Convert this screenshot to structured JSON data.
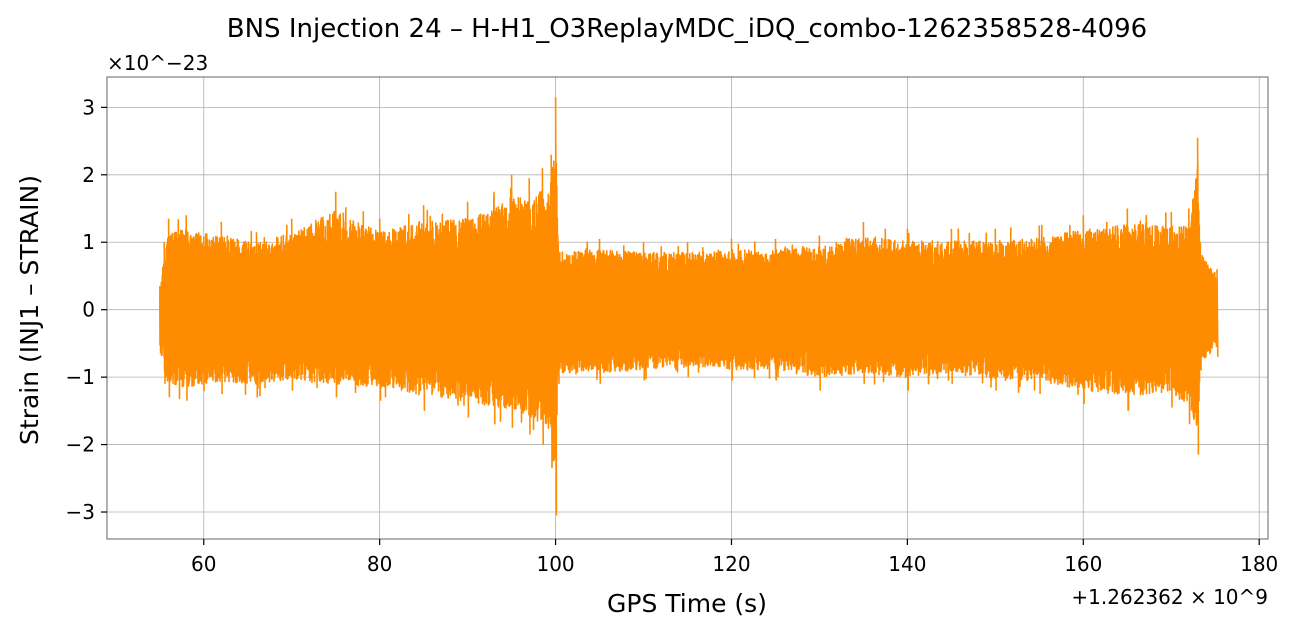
{
  "chart_data": {
    "type": "line",
    "title": "BNS Injection 24 – H-H1_O3ReplayMDC_iDQ_combo-1262358528-4096",
    "xlabel": "GPS Time (s)",
    "ylabel": "Strain (INJ1 – STRAIN)",
    "x_offset_label": "+1.262362 × 10^9",
    "y_scale_label": "×10^−23",
    "xlim": [
      49,
      181
    ],
    "ylim": [
      -3.4,
      3.45
    ],
    "x_ticks": [
      {
        "value": 60,
        "label": "60"
      },
      {
        "value": 80,
        "label": "80"
      },
      {
        "value": 100,
        "label": "100"
      },
      {
        "value": 120,
        "label": "120"
      },
      {
        "value": 140,
        "label": "140"
      },
      {
        "value": 160,
        "label": "160"
      },
      {
        "value": 180,
        "label": "180"
      }
    ],
    "y_ticks": [
      {
        "value": 3,
        "label": "3"
      },
      {
        "value": 2,
        "label": "2"
      },
      {
        "value": 1,
        "label": "1"
      },
      {
        "value": 0,
        "label": "0"
      },
      {
        "value": -1,
        "label": "−1"
      },
      {
        "value": -2,
        "label": "−2"
      },
      {
        "value": -3,
        "label": "−3"
      }
    ],
    "grid": true,
    "series": [
      {
        "color": "#ff8c00",
        "x_range": [
          55,
          175.2
        ],
        "envelope": [
          {
            "x": 55.0,
            "ymin": -0.65,
            "ymax": 0.35
          },
          {
            "x": 55.5,
            "ymin": -1.1,
            "ymax": 1.0
          },
          {
            "x": 56,
            "ymin": -1.3,
            "ymax": 1.35
          },
          {
            "x": 58,
            "ymin": -1.35,
            "ymax": 1.4
          },
          {
            "x": 62,
            "ymin": -1.25,
            "ymax": 1.3
          },
          {
            "x": 66,
            "ymin": -1.3,
            "ymax": 1.15
          },
          {
            "x": 70,
            "ymin": -1.2,
            "ymax": 1.35
          },
          {
            "x": 75,
            "ymin": -1.3,
            "ymax": 1.75
          },
          {
            "x": 80,
            "ymin": -1.35,
            "ymax": 1.35
          },
          {
            "x": 85,
            "ymin": -1.5,
            "ymax": 1.55
          },
          {
            "x": 90,
            "ymin": -1.6,
            "ymax": 1.6
          },
          {
            "x": 93,
            "ymin": -1.7,
            "ymax": 1.75
          },
          {
            "x": 95,
            "ymin": -1.75,
            "ymax": 2.0
          },
          {
            "x": 97,
            "ymin": -1.85,
            "ymax": 1.95
          },
          {
            "x": 98.5,
            "ymin": -2.0,
            "ymax": 2.1
          },
          {
            "x": 99.5,
            "ymin": -2.35,
            "ymax": 2.3
          },
          {
            "x": 100.0,
            "ymin": -3.05,
            "ymax": 3.15
          },
          {
            "x": 100.3,
            "ymin": -1.1,
            "ymax": 1.0
          },
          {
            "x": 105,
            "ymin": -1.1,
            "ymax": 1.05
          },
          {
            "x": 110,
            "ymin": -1.05,
            "ymax": 1.0
          },
          {
            "x": 115,
            "ymin": -1.0,
            "ymax": 1.0
          },
          {
            "x": 120,
            "ymin": -1.05,
            "ymax": 1.05
          },
          {
            "x": 125,
            "ymin": -1.05,
            "ymax": 1.05
          },
          {
            "x": 130,
            "ymin": -1.2,
            "ymax": 1.1
          },
          {
            "x": 135,
            "ymin": -1.1,
            "ymax": 1.3
          },
          {
            "x": 140,
            "ymin": -1.2,
            "ymax": 1.2
          },
          {
            "x": 145,
            "ymin": -1.1,
            "ymax": 1.2
          },
          {
            "x": 150,
            "ymin": -1.2,
            "ymax": 1.2
          },
          {
            "x": 155,
            "ymin": -1.25,
            "ymax": 1.25
          },
          {
            "x": 160,
            "ymin": -1.4,
            "ymax": 1.4
          },
          {
            "x": 165,
            "ymin": -1.5,
            "ymax": 1.5
          },
          {
            "x": 170,
            "ymin": -1.45,
            "ymax": 1.45
          },
          {
            "x": 172,
            "ymin": -1.7,
            "ymax": 1.5
          },
          {
            "x": 173.0,
            "ymin": -2.15,
            "ymax": 2.55
          },
          {
            "x": 173.3,
            "ymin": -0.9,
            "ymax": 1.0
          },
          {
            "x": 175.2,
            "ymin": -0.7,
            "ymax": 0.6
          }
        ]
      }
    ]
  }
}
